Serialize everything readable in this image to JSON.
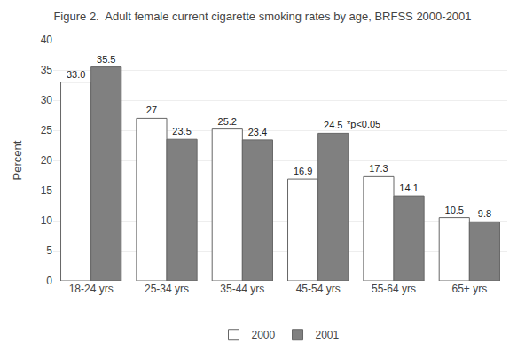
{
  "chart_data": {
    "type": "bar",
    "title": "Figure 2.  Adult female current cigarette smoking rates by age, BRFSS 2000-2001",
    "categories": [
      "18-24 yrs",
      "25-34 yrs",
      "35-44 yrs",
      "45-54 yrs",
      "55-64 yrs",
      "65+ yrs"
    ],
    "series": [
      {
        "name": "2000",
        "color": "#ffffff",
        "values": [
          33.0,
          27.0,
          25.2,
          16.9,
          17.3,
          10.5
        ],
        "value_labels": [
          "33.0",
          "27",
          "25.2",
          "16.9",
          "17.3",
          "10.5"
        ]
      },
      {
        "name": "2001",
        "color": "#808080",
        "values": [
          35.5,
          23.5,
          23.4,
          24.5,
          14.1,
          9.8
        ],
        "value_labels": [
          "35.5",
          "23.5",
          "23.4",
          "24.5",
          "14.1",
          "9.8"
        ]
      }
    ],
    "ylabel": "Percent",
    "ylim": [
      0,
      40
    ],
    "yticks": [
      0,
      5,
      10,
      15,
      20,
      25,
      30,
      35,
      40
    ],
    "grid": true,
    "legend": "bottom",
    "data_labels": true,
    "annotations": [
      {
        "text": "*p<0.05",
        "category": "45-54 yrs",
        "series": "2001"
      }
    ]
  }
}
